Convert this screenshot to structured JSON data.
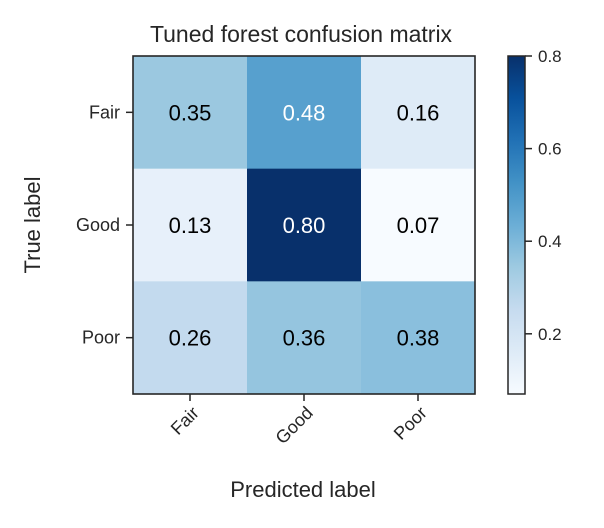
{
  "chart_data": {
    "type": "heatmap",
    "title": "Tuned forest confusion matrix",
    "xlabel": "Predicted label",
    "ylabel": "True label",
    "x_categories": [
      "Fair",
      "Good",
      "Poor"
    ],
    "y_categories": [
      "Fair",
      "Good",
      "Poor"
    ],
    "values": [
      [
        0.35,
        0.48,
        0.16
      ],
      [
        0.13,
        0.8,
        0.07
      ],
      [
        0.26,
        0.36,
        0.38
      ]
    ],
    "cell_labels": [
      [
        "0.35",
        "0.48",
        "0.16"
      ],
      [
        "0.13",
        "0.80",
        "0.07"
      ],
      [
        "0.26",
        "0.36",
        "0.38"
      ]
    ],
    "colormap": "Blues",
    "color_range": [
      0.07,
      0.8
    ],
    "colorbar": {
      "ticks": [
        0.2,
        0.4,
        0.6,
        0.8
      ],
      "tick_labels": [
        "0.2",
        "0.4",
        "0.6",
        "0.8"
      ]
    },
    "text_color_dark": "#000000",
    "text_color_light": "#ffffff",
    "grid": false
  }
}
